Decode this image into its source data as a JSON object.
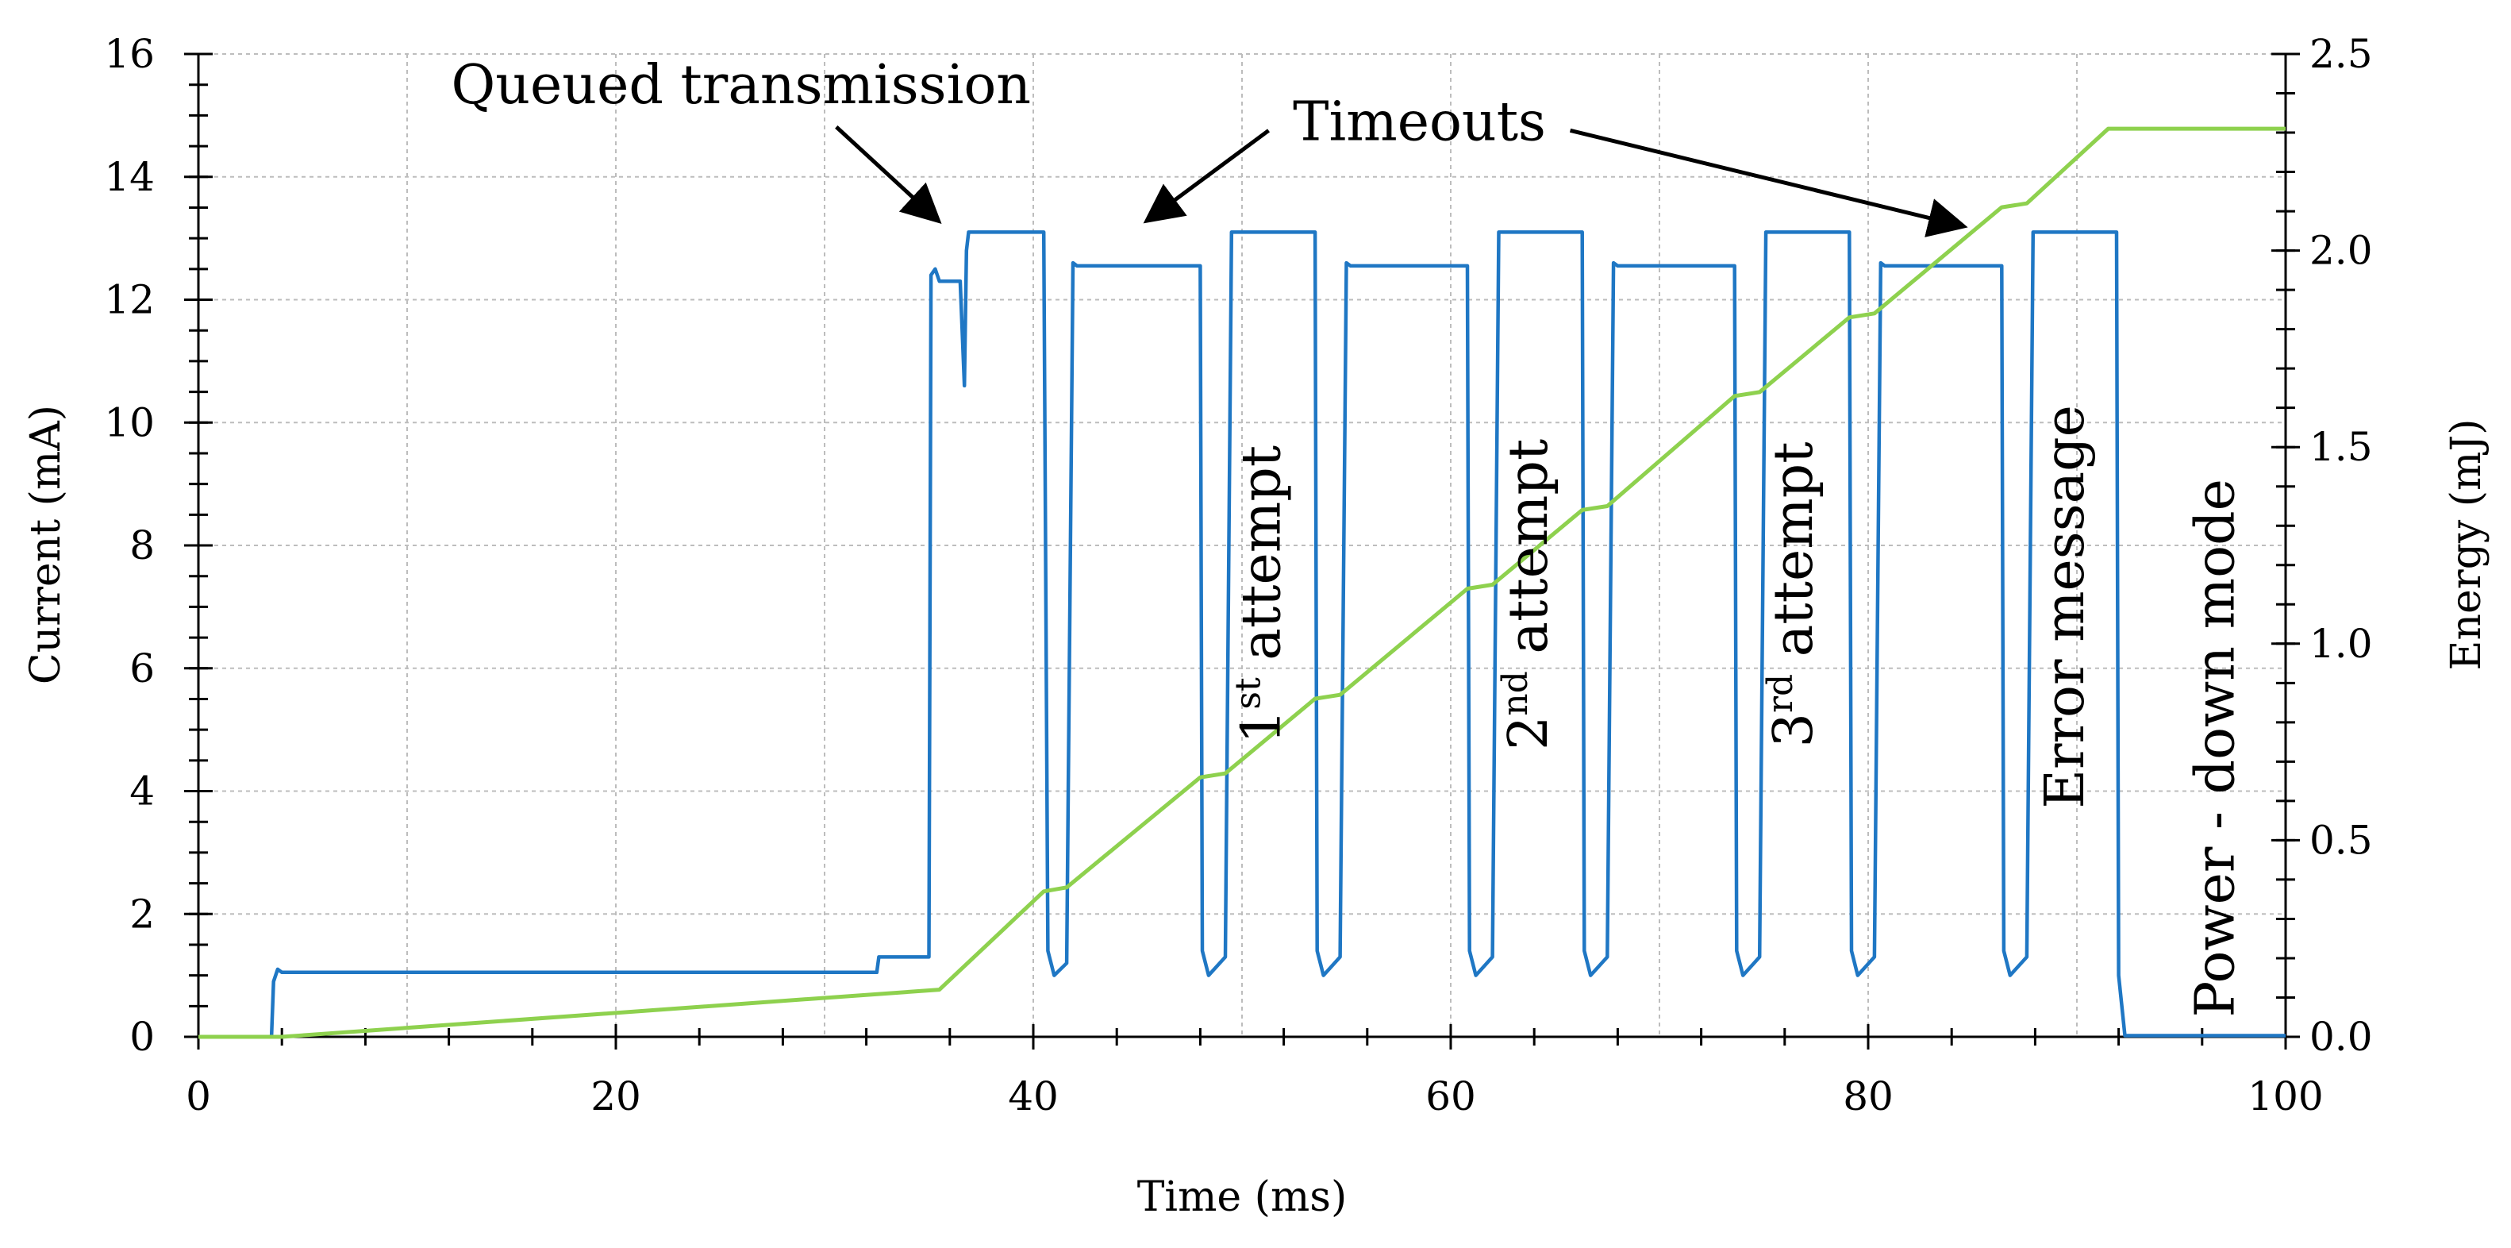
{
  "chart_data": {
    "type": "line",
    "title": "",
    "xlabel": "Time (ms)",
    "ylabel": "Current (mA)",
    "y2label": "Energy (mJ)",
    "xlim": [
      0,
      100
    ],
    "ylim": [
      0,
      16
    ],
    "y2lim": [
      0,
      2.5
    ],
    "xticks": [
      "0",
      "20",
      "40",
      "60",
      "80",
      "100"
    ],
    "yticks": [
      "0",
      "2",
      "4",
      "6",
      "8",
      "10",
      "12",
      "14",
      "16"
    ],
    "y2ticks": [
      "0.0",
      "0.5",
      "1.0",
      "1.5",
      "2.0",
      "2.5"
    ],
    "grid": true,
    "series": [
      {
        "name": "Current",
        "axis": "left",
        "color": "#1f77c4",
        "x": [
          0,
          3.5,
          3.6,
          3.8,
          4.0,
          32.5,
          32.6,
          35.0,
          35.1,
          35.3,
          35.5,
          36.5,
          36.7,
          36.8,
          36.9,
          37.0,
          40.5,
          40.7,
          41.0,
          41.6,
          41.9,
          42.1,
          48.0,
          48.1,
          48.4,
          49.2,
          49.5,
          49.7,
          53.5,
          53.6,
          53.9,
          54.7,
          55.0,
          55.2,
          60.8,
          60.9,
          61.2,
          62.0,
          62.3,
          62.5,
          66.3,
          66.4,
          66.7,
          67.5,
          67.8,
          68.0,
          73.6,
          73.7,
          74.0,
          74.8,
          75.1,
          75.3,
          79.1,
          79.2,
          79.5,
          80.3,
          80.6,
          80.8,
          86.4,
          86.5,
          86.8,
          87.6,
          87.9,
          88.1,
          91.9,
          92.0,
          92.3,
          100
        ],
        "values": [
          0.0,
          0.0,
          0.9,
          1.1,
          1.05,
          1.05,
          1.3,
          1.3,
          12.4,
          12.5,
          12.3,
          12.3,
          10.6,
          12.8,
          13.1,
          13.1,
          13.1,
          1.4,
          1.0,
          1.2,
          12.6,
          12.55,
          12.55,
          1.4,
          1.0,
          1.3,
          13.1,
          13.1,
          13.1,
          1.4,
          1.0,
          1.3,
          12.6,
          12.55,
          12.55,
          1.4,
          1.0,
          1.3,
          13.1,
          13.1,
          13.1,
          1.4,
          1.0,
          1.3,
          12.6,
          12.55,
          12.55,
          1.4,
          1.0,
          1.3,
          13.1,
          13.1,
          13.1,
          1.4,
          1.0,
          1.3,
          12.6,
          12.55,
          12.55,
          1.4,
          1.0,
          1.3,
          13.1,
          13.1,
          13.1,
          1.0,
          0.02,
          0.02
        ]
      },
      {
        "name": "Energy",
        "axis": "right",
        "color": "#8ed14e",
        "x": [
          0,
          4,
          35.5,
          40.5,
          41.6,
          48.0,
          49.2,
          53.5,
          54.7,
          60.8,
          62.0,
          66.3,
          67.5,
          73.6,
          74.8,
          79.1,
          80.3,
          86.4,
          87.6,
          91.5,
          100
        ],
        "values": [
          0.0,
          0.0,
          0.12,
          0.37,
          0.38,
          0.66,
          0.67,
          0.86,
          0.87,
          1.14,
          1.15,
          1.34,
          1.35,
          1.63,
          1.64,
          1.83,
          1.84,
          2.11,
          2.12,
          2.31,
          2.31
        ]
      }
    ],
    "annotations": [
      {
        "text": "Queued transmission",
        "x": 26,
        "y": 15.2,
        "arrow_to": [
          35.4,
          13.3
        ]
      },
      {
        "text": "Timeouts",
        "x": 58.5,
        "y": 14.6,
        "arrow_to": [
          [
            45.5,
            13.3
          ],
          [
            84.5,
            13.2
          ]
        ]
      }
    ],
    "vertical_labels": [
      {
        "x": 51.8,
        "y": 7.2,
        "parts": [
          {
            "t": "1"
          },
          {
            "t": "st",
            "sup": true
          },
          {
            "t": " attempt"
          }
        ]
      },
      {
        "x": 64.6,
        "y": 7.2,
        "parts": [
          {
            "t": "2"
          },
          {
            "t": "nd",
            "sup": true
          },
          {
            "t": " attempt"
          }
        ]
      },
      {
        "x": 77.3,
        "y": 7.2,
        "parts": [
          {
            "t": "3"
          },
          {
            "t": "rd",
            "sup": true
          },
          {
            "t": " attempt"
          }
        ]
      },
      {
        "x": 90.3,
        "y": 7.0,
        "parts": [
          {
            "t": "Error message"
          }
        ]
      },
      {
        "x": 97.5,
        "y": 4.7,
        "parts": [
          {
            "t": "Power - down mode"
          }
        ]
      }
    ]
  }
}
